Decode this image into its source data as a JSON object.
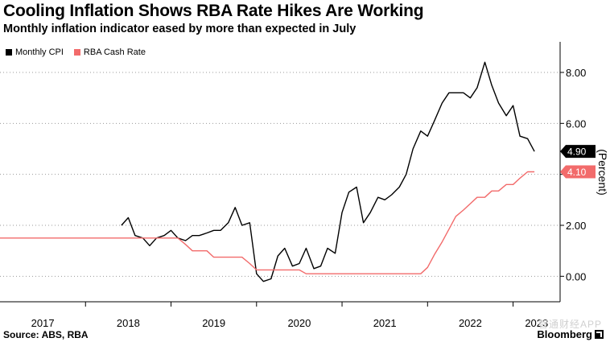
{
  "title": "Cooling Inflation Shows RBA Rate Hikes Are Working",
  "subtitle": "Monthly inflation indicator eased by more than expected in July",
  "source": "Source: ABS, RBA",
  "brand": "Bloomberg",
  "watermark": "智通财经APP",
  "chart_data": {
    "type": "line",
    "title": "Cooling Inflation Shows RBA Rate Hikes Are Working",
    "subtitle": "Monthly inflation indicator eased by more than expected in July",
    "ylabel": "(Percent)",
    "xlabel": "",
    "ylim": [
      -1.0,
      9.2
    ],
    "xlim": [
      2017.0,
      2023.55
    ],
    "y_ticks": [
      0,
      2,
      4,
      6,
      8
    ],
    "y_tick_labels": [
      "0.00",
      "2.00",
      "4.00",
      "6.00",
      "8.00"
    ],
    "x_tick_labels": [
      "2017",
      "2018",
      "2019",
      "2020",
      "2021",
      "2022",
      "2023"
    ],
    "legend": {
      "position": "top-left",
      "entries": [
        "Monthly CPI",
        "RBA Cash Rate"
      ]
    },
    "grid": "horizontal dotted",
    "series": [
      {
        "name": "Monthly CPI",
        "color": "#000000",
        "end_label": "4.90",
        "points": [
          [
            2018.42,
            2.0
          ],
          [
            2018.5,
            2.3
          ],
          [
            2018.58,
            1.6
          ],
          [
            2018.67,
            1.5
          ],
          [
            2018.75,
            1.2
          ],
          [
            2018.83,
            1.5
          ],
          [
            2018.92,
            1.6
          ],
          [
            2019.0,
            1.8
          ],
          [
            2019.08,
            1.5
          ],
          [
            2019.17,
            1.4
          ],
          [
            2019.25,
            1.6
          ],
          [
            2019.33,
            1.6
          ],
          [
            2019.42,
            1.7
          ],
          [
            2019.5,
            1.8
          ],
          [
            2019.58,
            1.8
          ],
          [
            2019.67,
            2.1
          ],
          [
            2019.75,
            2.7
          ],
          [
            2019.83,
            2.0
          ],
          [
            2019.92,
            2.1
          ],
          [
            2020.0,
            0.1
          ],
          [
            2020.08,
            -0.2
          ],
          [
            2020.17,
            -0.1
          ],
          [
            2020.25,
            0.8
          ],
          [
            2020.33,
            1.1
          ],
          [
            2020.42,
            0.4
          ],
          [
            2020.5,
            0.5
          ],
          [
            2020.58,
            1.1
          ],
          [
            2020.67,
            0.3
          ],
          [
            2020.75,
            0.4
          ],
          [
            2020.83,
            1.1
          ],
          [
            2020.92,
            0.9
          ],
          [
            2021.0,
            2.5
          ],
          [
            2021.08,
            3.3
          ],
          [
            2021.17,
            3.5
          ],
          [
            2021.25,
            2.1
          ],
          [
            2021.33,
            2.5
          ],
          [
            2021.42,
            3.1
          ],
          [
            2021.5,
            3.0
          ],
          [
            2021.58,
            3.2
          ],
          [
            2021.67,
            3.5
          ],
          [
            2021.75,
            4.0
          ],
          [
            2021.83,
            5.0
          ],
          [
            2021.92,
            5.7
          ],
          [
            2022.0,
            5.5
          ],
          [
            2022.08,
            6.1
          ],
          [
            2022.17,
            6.8
          ],
          [
            2022.25,
            7.2
          ],
          [
            2022.33,
            7.2
          ],
          [
            2022.42,
            7.2
          ],
          [
            2022.5,
            7.0
          ],
          [
            2022.58,
            7.4
          ],
          [
            2022.67,
            8.4
          ],
          [
            2022.75,
            7.5
          ],
          [
            2022.83,
            6.8
          ],
          [
            2022.92,
            6.3
          ],
          [
            2023.0,
            6.7
          ],
          [
            2023.08,
            5.5
          ],
          [
            2023.17,
            5.4
          ],
          [
            2023.25,
            4.9
          ]
        ]
      },
      {
        "name": "RBA Cash Rate",
        "color": "#f26b6b",
        "end_label": "4.10",
        "points": [
          [
            2017.0,
            1.5
          ],
          [
            2019.0,
            1.5
          ],
          [
            2019.08,
            1.5
          ],
          [
            2019.17,
            1.25
          ],
          [
            2019.25,
            1.0
          ],
          [
            2019.42,
            1.0
          ],
          [
            2019.5,
            0.75
          ],
          [
            2019.83,
            0.75
          ],
          [
            2019.92,
            0.5
          ],
          [
            2020.0,
            0.25
          ],
          [
            2020.5,
            0.25
          ],
          [
            2020.58,
            0.1
          ],
          [
            2021.92,
            0.1
          ],
          [
            2022.0,
            0.35
          ],
          [
            2022.08,
            0.85
          ],
          [
            2022.17,
            1.35
          ],
          [
            2022.25,
            1.85
          ],
          [
            2022.33,
            2.35
          ],
          [
            2022.42,
            2.6
          ],
          [
            2022.5,
            2.85
          ],
          [
            2022.58,
            3.1
          ],
          [
            2022.67,
            3.1
          ],
          [
            2022.75,
            3.35
          ],
          [
            2022.83,
            3.35
          ],
          [
            2022.92,
            3.6
          ],
          [
            2023.0,
            3.6
          ],
          [
            2023.08,
            3.85
          ],
          [
            2023.17,
            4.1
          ],
          [
            2023.25,
            4.1
          ]
        ]
      }
    ]
  }
}
